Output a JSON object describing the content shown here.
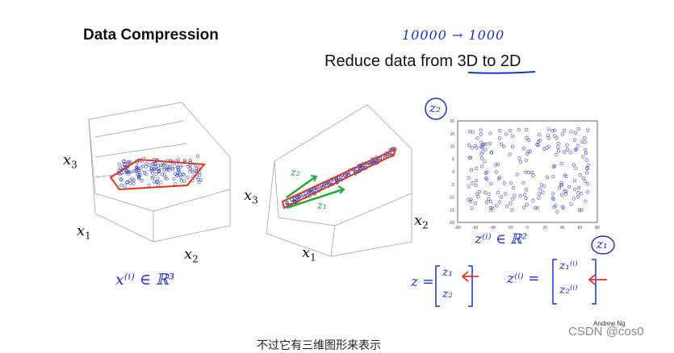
{
  "slide": {
    "title": "Data Compression",
    "subtitle_prefix": "Reduce data from ",
    "subtitle_highlight": "3D to 2D",
    "note_top": "10000 → 1000",
    "credit": "Andrew Ng",
    "watermark": "CSDN @cos0",
    "caption": "不过它有三维图形来表示"
  },
  "plot1": {
    "x3": "x",
    "x3_sub": "3",
    "x1": "x",
    "x1_sub": "1",
    "x2": "x",
    "x2_sub": "2",
    "hand_formula": "x⁽ⁱ⁾ ∈ ℝ³"
  },
  "plot2": {
    "x3": "x",
    "x3_sub": "3",
    "x1": "x",
    "x1_sub": "1",
    "x2": "x",
    "x2_sub": "2",
    "z1_hand": "z₁",
    "z2_hand": "z₂"
  },
  "plot3": {
    "z2_circle": "z₂",
    "z1_circle": "z₁",
    "hand_formula": "z⁽ⁱ⁾ ∈ ℝ²",
    "x_ticks": [
      "-80",
      "-60",
      "-40",
      "-20",
      "0",
      "20",
      "40",
      "60",
      "80"
    ],
    "y_ticks": [
      "20",
      "15",
      "10",
      "5",
      "0",
      "-5",
      "-10",
      "-15",
      "-20"
    ]
  },
  "vectors": {
    "z_label": "z =",
    "z_entries": [
      "z₁",
      "z₂"
    ],
    "zi_label": "z⁽ⁱ⁾ =",
    "zi_entries": [
      "z₁⁽ⁱ⁾",
      "z₂⁽ⁱ⁾"
    ]
  },
  "colors": {
    "ink": "#1a33c7",
    "red": "#e8331c",
    "point": "#3344bb"
  }
}
